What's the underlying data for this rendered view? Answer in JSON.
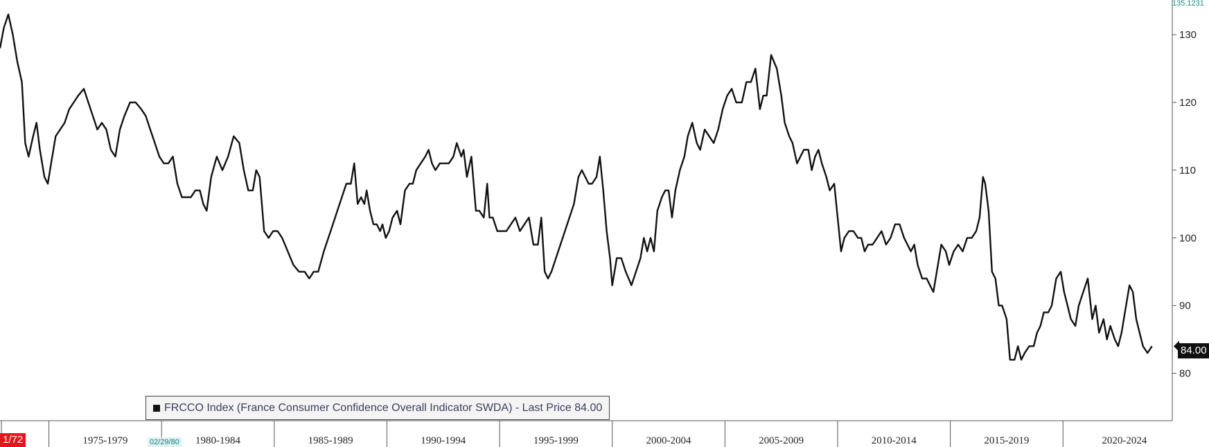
{
  "chart_data": {
    "type": "line",
    "title": "",
    "xlabel": "",
    "ylabel": "",
    "axis_max_label": "135.1231",
    "y_ticks": [
      80,
      90,
      100,
      110,
      120,
      130
    ],
    "ylim": [
      73,
      135.1231
    ],
    "x_period_labels": [
      "1975-1979",
      "1980-1984",
      "1985-1989",
      "1990-1994",
      "1995-1999",
      "2000-2004",
      "2005-2009",
      "2010-2014",
      "2015-2019",
      "2020-2024"
    ],
    "x_period_starts": [
      1975,
      1980,
      1985,
      1990,
      1995,
      2000,
      2005,
      2010,
      2015,
      2020
    ],
    "xlim": [
      1972.83,
      2024.85
    ],
    "last_price_label": "84.00",
    "legend_text": "FRCCO Index (France Consumer Confidence Overall Indicator SWDA) - Last Price 84.00",
    "start_label": "1/72",
    "cursor_date_label": "02/29/80",
    "series": [
      {
        "name": "FRCCO Index",
        "color": "#111111",
        "points": [
          [
            1972.83,
            128
          ],
          [
            1973.0,
            131
          ],
          [
            1973.2,
            133
          ],
          [
            1973.4,
            130
          ],
          [
            1973.6,
            126
          ],
          [
            1973.8,
            123
          ],
          [
            1973.95,
            114
          ],
          [
            1974.1,
            112
          ],
          [
            1974.3,
            115
          ],
          [
            1974.45,
            117
          ],
          [
            1974.6,
            113
          ],
          [
            1974.8,
            109
          ],
          [
            1974.95,
            108
          ],
          [
            1975.1,
            111
          ],
          [
            1975.3,
            115
          ],
          [
            1975.5,
            116
          ],
          [
            1975.7,
            117
          ],
          [
            1975.9,
            119
          ],
          [
            1976.1,
            120
          ],
          [
            1976.3,
            121
          ],
          [
            1976.55,
            122
          ],
          [
            1976.75,
            120
          ],
          [
            1976.95,
            118
          ],
          [
            1977.15,
            116
          ],
          [
            1977.35,
            117
          ],
          [
            1977.55,
            116
          ],
          [
            1977.75,
            113
          ],
          [
            1977.95,
            112
          ],
          [
            1978.15,
            116
          ],
          [
            1978.35,
            118
          ],
          [
            1978.6,
            120
          ],
          [
            1978.85,
            120
          ],
          [
            1979.1,
            119
          ],
          [
            1979.3,
            118
          ],
          [
            1979.5,
            116
          ],
          [
            1979.7,
            114
          ],
          [
            1979.9,
            112
          ],
          [
            1980.1,
            111
          ],
          [
            1980.3,
            111
          ],
          [
            1980.5,
            112
          ],
          [
            1980.7,
            108
          ],
          [
            1980.9,
            106
          ],
          [
            1981.1,
            106
          ],
          [
            1981.3,
            106
          ],
          [
            1981.5,
            107
          ],
          [
            1981.7,
            107
          ],
          [
            1981.85,
            105
          ],
          [
            1982.0,
            104
          ],
          [
            1982.2,
            109
          ],
          [
            1982.45,
            112
          ],
          [
            1982.7,
            110
          ],
          [
            1982.95,
            112
          ],
          [
            1983.2,
            115
          ],
          [
            1983.45,
            114
          ],
          [
            1983.65,
            110
          ],
          [
            1983.85,
            107
          ],
          [
            1984.05,
            107
          ],
          [
            1984.2,
            110
          ],
          [
            1984.35,
            109
          ],
          [
            1984.55,
            101
          ],
          [
            1984.75,
            100
          ],
          [
            1984.95,
            101
          ],
          [
            1985.15,
            101
          ],
          [
            1985.35,
            100
          ],
          [
            1985.6,
            98
          ],
          [
            1985.85,
            96
          ],
          [
            1986.1,
            95
          ],
          [
            1986.35,
            95
          ],
          [
            1986.55,
            94
          ],
          [
            1986.75,
            95
          ],
          [
            1986.95,
            95
          ],
          [
            1987.2,
            98
          ],
          [
            1987.5,
            101
          ],
          [
            1987.8,
            104
          ],
          [
            1988.0,
            106
          ],
          [
            1988.2,
            108
          ],
          [
            1988.4,
            108
          ],
          [
            1988.55,
            111
          ],
          [
            1988.7,
            105
          ],
          [
            1988.85,
            106
          ],
          [
            1989.0,
            105
          ],
          [
            1989.1,
            107
          ],
          [
            1989.25,
            104
          ],
          [
            1989.4,
            102
          ],
          [
            1989.55,
            102
          ],
          [
            1989.7,
            101
          ],
          [
            1989.8,
            102
          ],
          [
            1989.95,
            100
          ],
          [
            1990.1,
            101
          ],
          [
            1990.25,
            103
          ],
          [
            1990.45,
            104
          ],
          [
            1990.6,
            102
          ],
          [
            1990.8,
            107
          ],
          [
            1991.0,
            108
          ],
          [
            1991.15,
            108
          ],
          [
            1991.3,
            110
          ],
          [
            1991.5,
            111
          ],
          [
            1991.7,
            112
          ],
          [
            1991.85,
            113
          ],
          [
            1992.0,
            111
          ],
          [
            1992.15,
            110
          ],
          [
            1992.35,
            111
          ],
          [
            1992.55,
            111
          ],
          [
            1992.75,
            111
          ],
          [
            1992.95,
            112
          ],
          [
            1993.1,
            114
          ],
          [
            1993.3,
            112
          ],
          [
            1993.4,
            113
          ],
          [
            1993.55,
            109
          ],
          [
            1993.75,
            112
          ],
          [
            1993.95,
            104
          ],
          [
            1994.1,
            104
          ],
          [
            1994.3,
            103
          ],
          [
            1994.45,
            108
          ],
          [
            1994.55,
            103
          ],
          [
            1994.7,
            103
          ],
          [
            1994.9,
            101
          ],
          [
            1995.1,
            101
          ],
          [
            1995.3,
            101
          ],
          [
            1995.5,
            102
          ],
          [
            1995.7,
            103
          ],
          [
            1995.9,
            101
          ],
          [
            1996.1,
            102
          ],
          [
            1996.3,
            103
          ],
          [
            1996.5,
            99
          ],
          [
            1996.7,
            99
          ],
          [
            1996.85,
            103
          ],
          [
            1997.0,
            95
          ],
          [
            1997.15,
            94
          ],
          [
            1997.3,
            95
          ],
          [
            1997.5,
            97
          ],
          [
            1997.7,
            99
          ],
          [
            1997.9,
            101
          ],
          [
            1998.1,
            103
          ],
          [
            1998.3,
            105
          ],
          [
            1998.5,
            109
          ],
          [
            1998.65,
            110
          ],
          [
            1998.8,
            109
          ],
          [
            1998.95,
            108
          ],
          [
            1999.1,
            108
          ],
          [
            1999.3,
            109
          ],
          [
            1999.45,
            112
          ],
          [
            1999.6,
            107
          ],
          [
            1999.75,
            101
          ],
          [
            1999.9,
            97
          ],
          [
            2000.0,
            93
          ],
          [
            2000.2,
            97
          ],
          [
            2000.4,
            97
          ],
          [
            2000.6,
            95
          ],
          [
            2000.85,
            93
          ],
          [
            2001.05,
            95
          ],
          [
            2001.25,
            97
          ],
          [
            2001.4,
            100
          ],
          [
            2001.55,
            98
          ],
          [
            2001.7,
            100
          ],
          [
            2001.85,
            98
          ],
          [
            2002.0,
            104
          ],
          [
            2002.2,
            106
          ],
          [
            2002.35,
            107
          ],
          [
            2002.5,
            107
          ],
          [
            2002.65,
            103
          ],
          [
            2002.8,
            107
          ],
          [
            2003.0,
            110
          ],
          [
            2003.2,
            112
          ],
          [
            2003.35,
            115
          ],
          [
            2003.55,
            117
          ],
          [
            2003.75,
            114
          ],
          [
            2003.9,
            113
          ],
          [
            2004.1,
            116
          ],
          [
            2004.3,
            115
          ],
          [
            2004.5,
            114
          ],
          [
            2004.7,
            116
          ],
          [
            2004.9,
            119
          ],
          [
            2005.1,
            121
          ],
          [
            2005.3,
            122
          ],
          [
            2005.5,
            120
          ],
          [
            2005.75,
            120
          ],
          [
            2005.95,
            123
          ],
          [
            2006.15,
            123
          ],
          [
            2006.35,
            125
          ],
          [
            2006.55,
            119
          ],
          [
            2006.7,
            121
          ],
          [
            2006.85,
            121
          ],
          [
            2007.05,
            127
          ],
          [
            2007.3,
            125
          ],
          [
            2007.5,
            121
          ],
          [
            2007.65,
            117
          ],
          [
            2007.85,
            115
          ],
          [
            2008.0,
            114
          ],
          [
            2008.2,
            111
          ],
          [
            2008.35,
            112
          ],
          [
            2008.5,
            113
          ],
          [
            2008.7,
            113
          ],
          [
            2008.85,
            110
          ],
          [
            2009.0,
            112
          ],
          [
            2009.15,
            113
          ],
          [
            2009.3,
            111
          ],
          [
            2009.5,
            109
          ],
          [
            2009.65,
            107
          ],
          [
            2009.85,
            108
          ],
          [
            2010.0,
            103
          ],
          [
            2010.15,
            98
          ],
          [
            2010.3,
            100
          ],
          [
            2010.5,
            101
          ],
          [
            2010.7,
            101
          ],
          [
            2010.9,
            100
          ],
          [
            2011.05,
            100
          ],
          [
            2011.2,
            98
          ],
          [
            2011.35,
            99
          ],
          [
            2011.55,
            99
          ],
          [
            2011.75,
            100
          ],
          [
            2011.95,
            101
          ],
          [
            2012.15,
            99
          ],
          [
            2012.35,
            100
          ],
          [
            2012.55,
            102
          ],
          [
            2012.75,
            102
          ],
          [
            2012.95,
            100
          ],
          [
            2013.1,
            99
          ],
          [
            2013.25,
            98
          ],
          [
            2013.4,
            99
          ],
          [
            2013.55,
            96
          ],
          [
            2013.75,
            94
          ],
          [
            2013.95,
            94
          ],
          [
            2014.1,
            93
          ],
          [
            2014.25,
            92
          ],
          [
            2014.4,
            95
          ],
          [
            2014.6,
            99
          ],
          [
            2014.8,
            98
          ],
          [
            2014.95,
            96
          ],
          [
            2015.15,
            98
          ],
          [
            2015.35,
            99
          ],
          [
            2015.55,
            98
          ],
          [
            2015.75,
            100
          ],
          [
            2015.95,
            100
          ],
          [
            2016.15,
            101
          ],
          [
            2016.3,
            103
          ],
          [
            2016.45,
            109
          ],
          [
            2016.55,
            108
          ],
          [
            2016.7,
            104
          ],
          [
            2016.85,
            95
          ],
          [
            2017.0,
            94
          ],
          [
            2017.15,
            90
          ],
          [
            2017.3,
            90
          ],
          [
            2017.5,
            88
          ],
          [
            2017.65,
            82
          ],
          [
            2017.85,
            82
          ],
          [
            2018.0,
            84
          ],
          [
            2018.15,
            82
          ],
          [
            2018.3,
            83
          ],
          [
            2018.5,
            84
          ],
          [
            2018.7,
            84
          ],
          [
            2018.85,
            86
          ],
          [
            2019.0,
            87
          ],
          [
            2019.15,
            89
          ],
          [
            2019.35,
            89
          ],
          [
            2019.5,
            90
          ],
          [
            2019.7,
            94
          ],
          [
            2019.9,
            95
          ],
          [
            2020.05,
            92
          ],
          [
            2020.2,
            90
          ],
          [
            2020.35,
            88
          ],
          [
            2020.55,
            87
          ],
          [
            2020.7,
            90
          ],
          [
            2020.9,
            92
          ],
          [
            2021.1,
            94
          ],
          [
            2021.3,
            88
          ],
          [
            2021.45,
            90
          ],
          [
            2021.6,
            86
          ],
          [
            2021.8,
            88
          ],
          [
            2021.95,
            85
          ],
          [
            2022.1,
            87
          ],
          [
            2022.3,
            85
          ],
          [
            2022.45,
            84
          ],
          [
            2022.6,
            86
          ],
          [
            2022.8,
            90
          ],
          [
            2022.95,
            93
          ],
          [
            2023.1,
            92
          ],
          [
            2023.25,
            88
          ],
          [
            2023.4,
            86
          ],
          [
            2023.55,
            84
          ],
          [
            2023.75,
            83
          ],
          [
            2023.95,
            84
          ]
        ]
      }
    ]
  }
}
